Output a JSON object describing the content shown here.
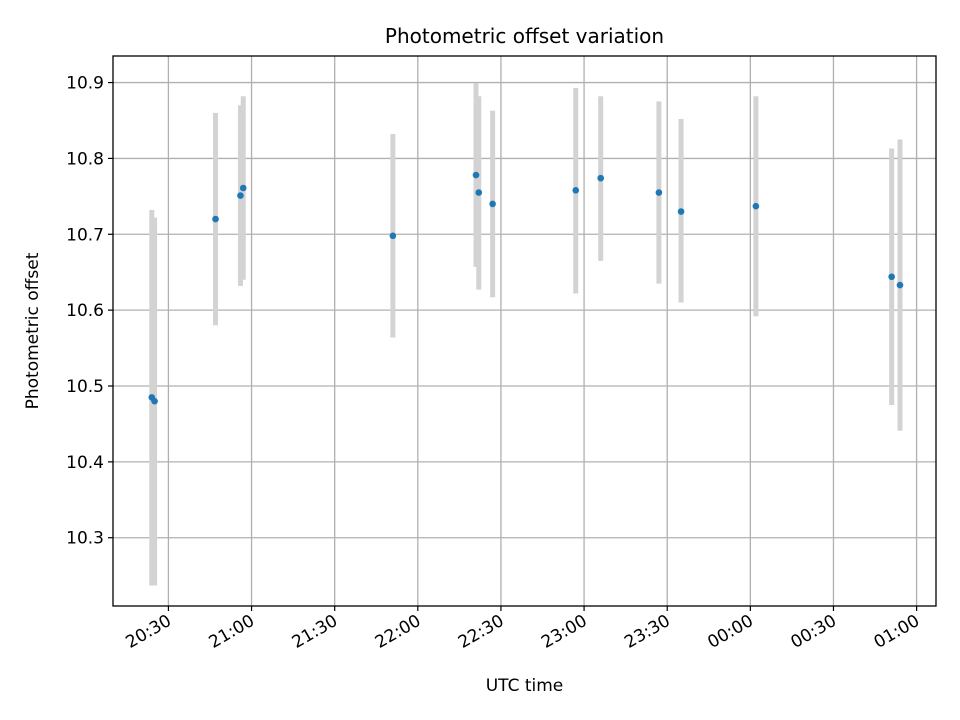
{
  "chart_data": {
    "type": "scatter",
    "title": "Photometric offset variation",
    "xlabel": "UTC time",
    "ylabel": "Photometric offset",
    "x_ticks": [
      "20:30",
      "21:00",
      "21:30",
      "22:00",
      "22:30",
      "23:00",
      "23:30",
      "00:00",
      "00:30",
      "01:00"
    ],
    "y_ticks": [
      "10.3",
      "10.4",
      "10.5",
      "10.6",
      "10.7",
      "10.8",
      "10.9"
    ],
    "ylim": [
      10.21,
      10.935
    ],
    "xlim": [
      "20:10",
      "01:07"
    ],
    "grid": true,
    "error_bar_color": "#d3d3d3",
    "marker_color": "#1f77b4",
    "series": [
      {
        "points": [
          {
            "x": "20:24",
            "y": 10.485,
            "ylow": 10.237,
            "yhigh": 10.732
          },
          {
            "x": "20:25",
            "y": 10.48,
            "ylow": 10.237,
            "yhigh": 10.722
          },
          {
            "x": "20:47",
            "y": 10.72,
            "ylow": 10.58,
            "yhigh": 10.86
          },
          {
            "x": "20:56",
            "y": 10.751,
            "ylow": 10.632,
            "yhigh": 10.87
          },
          {
            "x": "20:57",
            "y": 10.761,
            "ylow": 10.64,
            "yhigh": 10.882
          },
          {
            "x": "21:51",
            "y": 10.698,
            "ylow": 10.564,
            "yhigh": 10.832
          },
          {
            "x": "22:21",
            "y": 10.778,
            "ylow": 10.657,
            "yhigh": 10.899
          },
          {
            "x": "22:22",
            "y": 10.755,
            "ylow": 10.627,
            "yhigh": 10.882
          },
          {
            "x": "22:27",
            "y": 10.74,
            "ylow": 10.617,
            "yhigh": 10.863
          },
          {
            "x": "22:57",
            "y": 10.758,
            "ylow": 10.622,
            "yhigh": 10.893
          },
          {
            "x": "23:06",
            "y": 10.774,
            "ylow": 10.665,
            "yhigh": 10.882
          },
          {
            "x": "23:27",
            "y": 10.755,
            "ylow": 10.635,
            "yhigh": 10.875
          },
          {
            "x": "23:35",
            "y": 10.73,
            "ylow": 10.61,
            "yhigh": 10.852
          },
          {
            "x": "00:02",
            "y": 10.737,
            "ylow": 10.592,
            "yhigh": 10.882
          },
          {
            "x": "00:51",
            "y": 10.644,
            "ylow": 10.475,
            "yhigh": 10.813
          },
          {
            "x": "00:54",
            "y": 10.633,
            "ylow": 10.441,
            "yhigh": 10.825
          }
        ]
      }
    ]
  }
}
